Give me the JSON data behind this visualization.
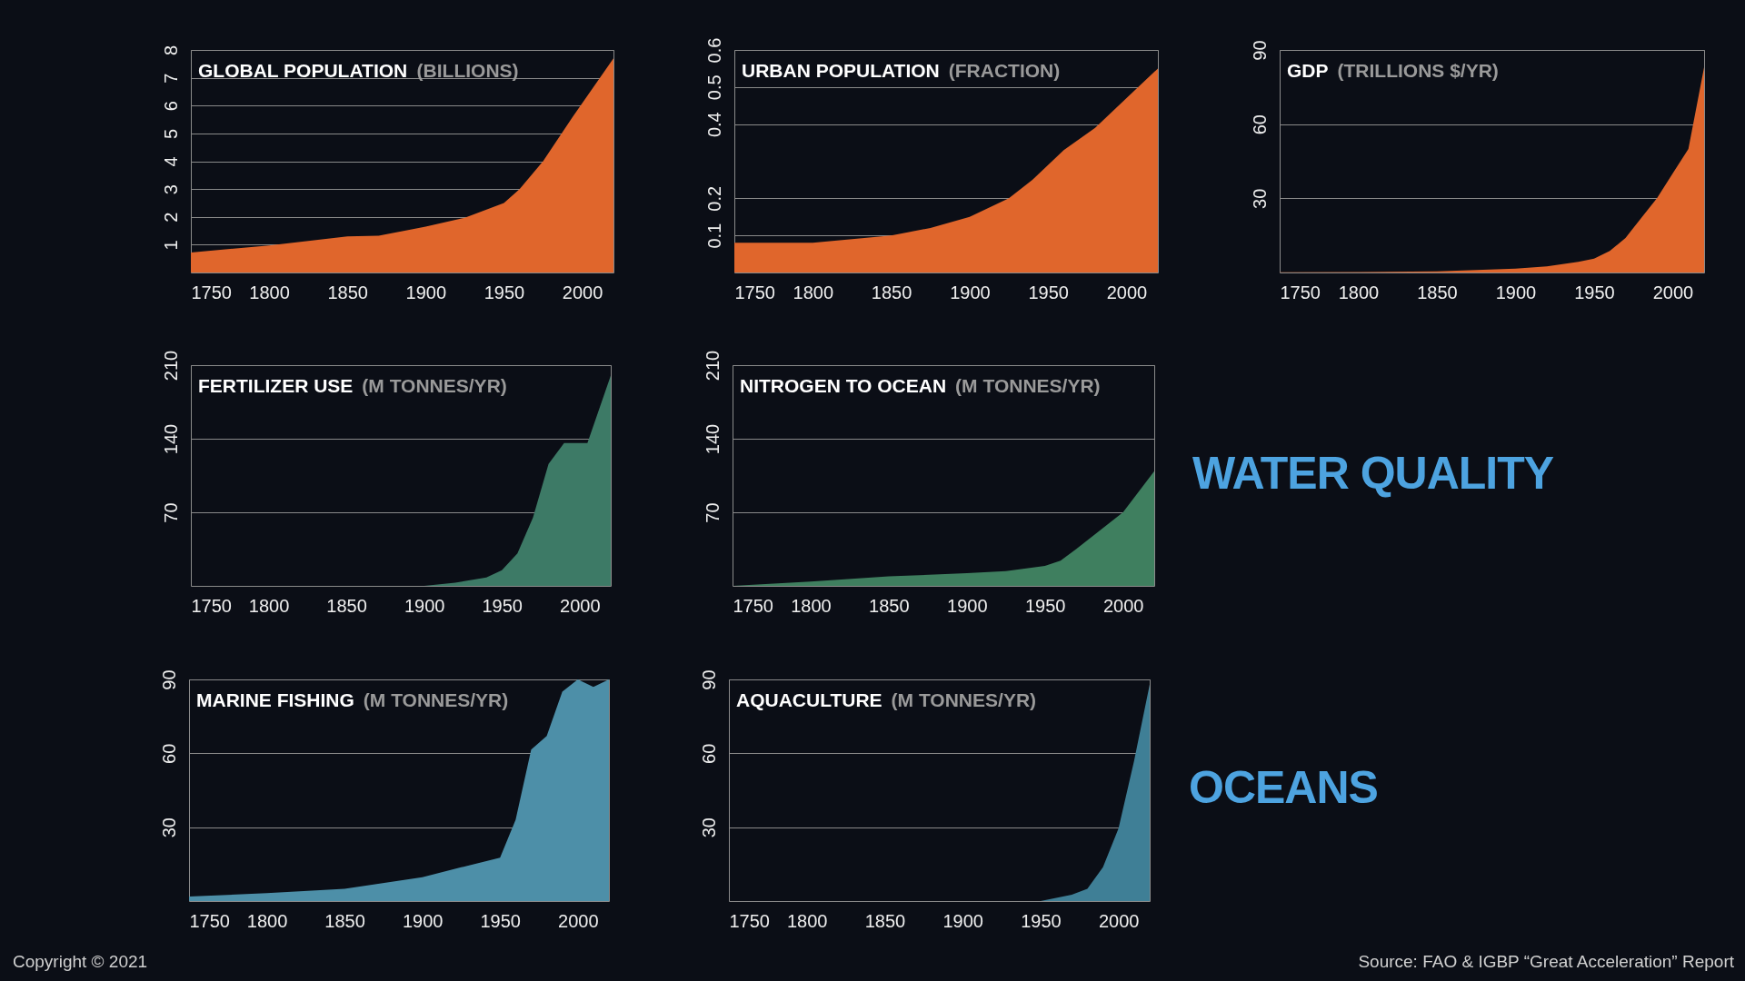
{
  "chart_data": [
    {
      "type": "area",
      "title": "GLOBAL POPULATION",
      "subtitle": "(BILLIONS)",
      "color": "#e0662c",
      "grid": "y",
      "xlim": [
        1750,
        2020
      ],
      "ylim": [
        0,
        8
      ],
      "xticks": [
        1750,
        1800,
        1850,
        1900,
        1950,
        2000
      ],
      "yticks": [
        1,
        2,
        3,
        4,
        5,
        6,
        7,
        8
      ],
      "x": [
        1750,
        1800,
        1850,
        1870,
        1900,
        1925,
        1950,
        1960,
        1975,
        1994,
        2020
      ],
      "values": [
        0.72,
        0.97,
        1.3,
        1.32,
        1.65,
        1.97,
        2.5,
        3.0,
        4.0,
        5.6,
        7.7
      ]
    },
    {
      "type": "area",
      "title": "URBAN POPULATION",
      "subtitle": "(FRACTION)",
      "color": "#e0662c",
      "grid": "y",
      "xlim": [
        1750,
        2020
      ],
      "ylim": [
        0,
        0.6
      ],
      "xticks": [
        1750,
        1800,
        1850,
        1900,
        1950,
        2000
      ],
      "yticks": [
        0.1,
        0.2,
        0.4,
        0.5,
        0.6
      ],
      "x": [
        1750,
        1800,
        1850,
        1875,
        1900,
        1925,
        1940,
        1960,
        1980,
        2000,
        2020
      ],
      "values": [
        0.08,
        0.08,
        0.1,
        0.12,
        0.15,
        0.2,
        0.25,
        0.33,
        0.39,
        0.47,
        0.55
      ]
    },
    {
      "type": "area",
      "title": "GDP",
      "subtitle": "(TRILLIONS $/YR)",
      "color": "#e0662c",
      "grid": "y",
      "xlim": [
        1750,
        2020
      ],
      "ylim": [
        0,
        90
      ],
      "xticks": [
        1750,
        1800,
        1850,
        1900,
        1950,
        2000
      ],
      "yticks": [
        30,
        60,
        90
      ],
      "x": [
        1750,
        1800,
        1850,
        1900,
        1920,
        1940,
        1950,
        1960,
        1970,
        1980,
        1990,
        2000,
        2010,
        2020
      ],
      "values": [
        0.1,
        0.2,
        0.5,
        1.6,
        2.5,
        4.3,
        5.6,
        8.7,
        14,
        22,
        30,
        40,
        50,
        83
      ]
    },
    {
      "type": "area",
      "title": "FERTILIZER USE",
      "subtitle": "(M TONNES/YR)",
      "color": "#3d7a66",
      "grid": "y",
      "xlim": [
        1750,
        2020
      ],
      "ylim": [
        0,
        210
      ],
      "xticks": [
        1750,
        1800,
        1850,
        1900,
        1950,
        2000
      ],
      "yticks": [
        70,
        140,
        210
      ],
      "x": [
        1750,
        1900,
        1920,
        1940,
        1950,
        1960,
        1970,
        1980,
        1990,
        2005,
        2020
      ],
      "values": [
        0,
        0,
        3,
        8,
        15,
        31,
        65,
        116,
        136,
        136,
        200
      ]
    },
    {
      "type": "area",
      "title": "NITROGEN TO OCEAN",
      "subtitle": "(M TONNES/YR)",
      "color": "#3f7f5f",
      "grid": "y",
      "xlim": [
        1750,
        2020
      ],
      "ylim": [
        0,
        210
      ],
      "xticks": [
        1750,
        1800,
        1850,
        1900,
        1950,
        2000
      ],
      "yticks": [
        70,
        140,
        210
      ],
      "x": [
        1750,
        1800,
        1850,
        1900,
        1925,
        1950,
        1960,
        1970,
        2000,
        2020
      ],
      "values": [
        0,
        4,
        9,
        12,
        14,
        19,
        24,
        35,
        70,
        109
      ]
    },
    {
      "type": "other",
      "title": "WATER QUALITY"
    },
    {
      "type": "area",
      "title": "MARINE FISHING",
      "subtitle": "(M TONNES/YR)",
      "color": "#4d8fa8",
      "grid": "y",
      "xlim": [
        1750,
        2020
      ],
      "ylim": [
        0,
        90
      ],
      "xticks": [
        1750,
        1800,
        1850,
        1900,
        1950,
        2000
      ],
      "yticks": [
        30,
        60,
        90
      ],
      "x": [
        1750,
        1800,
        1850,
        1900,
        1925,
        1950,
        1960,
        1970,
        1980,
        1990,
        2000,
        2010,
        2020
      ],
      "values": [
        1.8,
        3.2,
        5,
        9.7,
        13.7,
        17.6,
        33,
        61.5,
        67,
        85,
        90,
        87,
        90
      ]
    },
    {
      "type": "area",
      "title": "AQUACULTURE",
      "subtitle": "(M TONNES/YR)",
      "color": "#3f7f96",
      "grid": "y",
      "xlim": [
        1750,
        2020
      ],
      "ylim": [
        0,
        90
      ],
      "xticks": [
        1750,
        1800,
        1850,
        1900,
        1950,
        2000
      ],
      "yticks": [
        30,
        60,
        90
      ],
      "x": [
        1750,
        1950,
        1970,
        1980,
        1990,
        2000,
        2010,
        2020
      ],
      "values": [
        0,
        0,
        2.6,
        5,
        13.7,
        29.5,
        57,
        88
      ]
    },
    {
      "type": "other",
      "title": "OCEANS",
      "annotations": [
        "Copyright © 2021",
        "Source: FAO & IGBP “Great Acceleration” Report"
      ]
    }
  ]
}
